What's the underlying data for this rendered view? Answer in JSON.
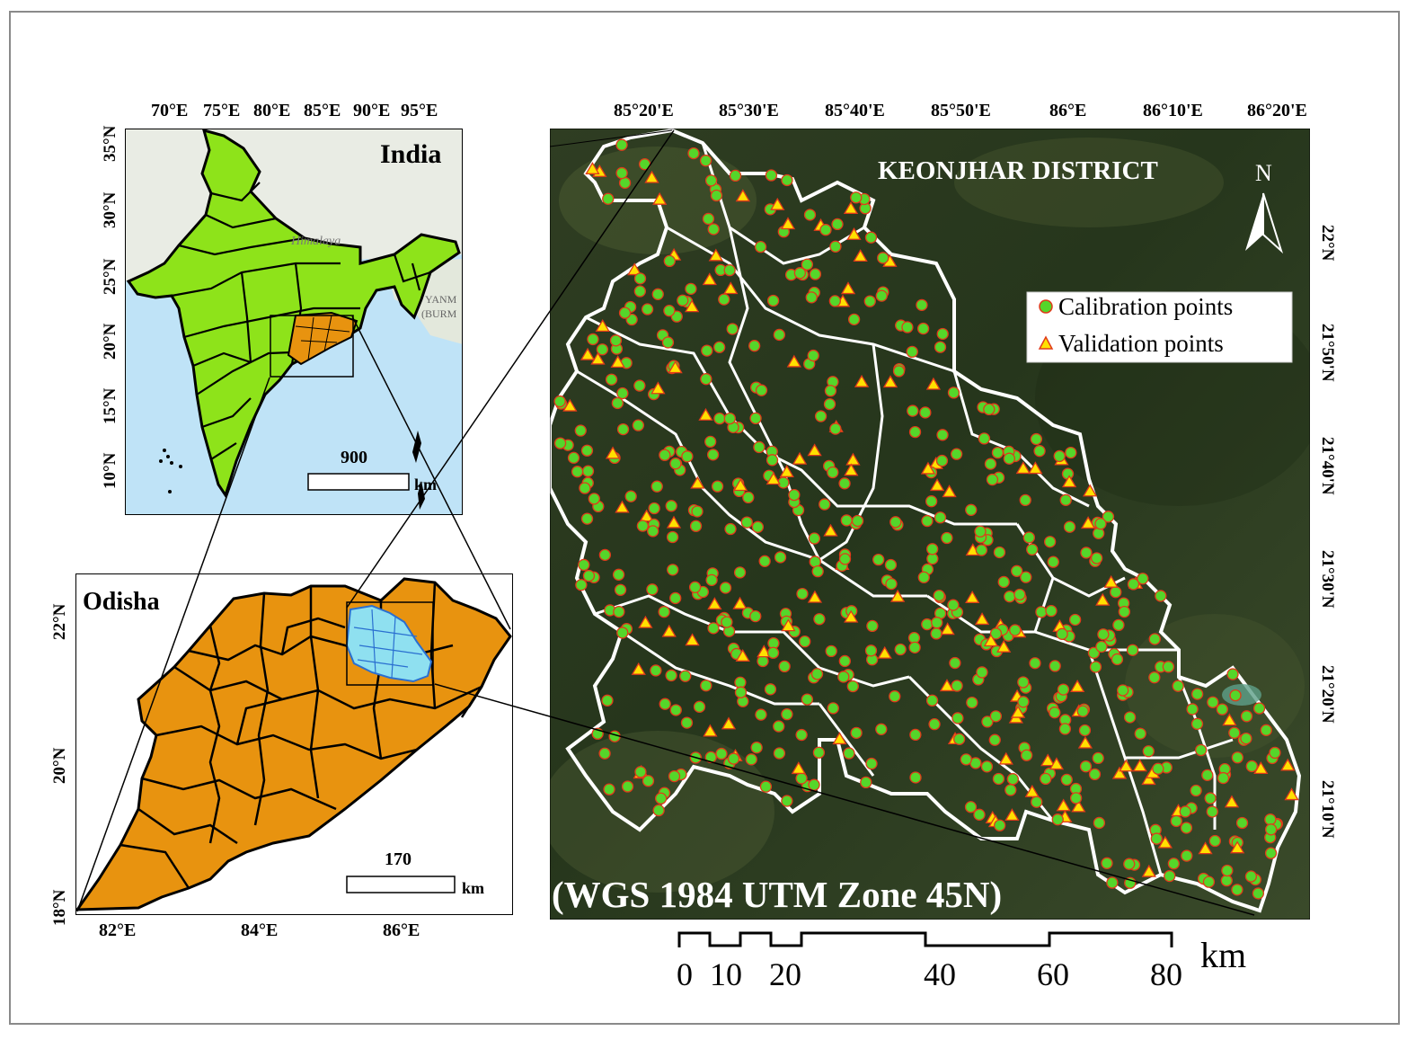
{
  "india_map": {
    "title": "India",
    "place_labels": [
      "Himalaya",
      "YANM",
      "(BURM"
    ],
    "lon_ticks": [
      "70°E",
      "75°E",
      "80°E",
      "85°E",
      "90°E",
      "95°E"
    ],
    "lat_ticks": [
      "35°N",
      "30°N",
      "25°N",
      "20°N",
      "15°N",
      "10°N"
    ],
    "scale": {
      "value": "900",
      "unit": "km"
    },
    "fill_color": "#8ee31a",
    "sea_color": "#bfe3f7"
  },
  "odisha_map": {
    "title": "Odisha",
    "lon_ticks": [
      "82°E",
      "84°E",
      "86°E"
    ],
    "lat_ticks": [
      "22°N",
      "20°N",
      "18°N"
    ],
    "scale": {
      "value": "170",
      "unit": "km"
    },
    "fill_color": "#e8930f",
    "highlight_color": "#8fe0f0"
  },
  "keonjhar_map": {
    "title": "KEONJHAR DISTRICT",
    "north_label": "N",
    "projection_label": "(WGS 1984 UTM Zone 45N)",
    "lon_ticks": [
      "85°20'E",
      "85°30'E",
      "85°40'E",
      "85°50'E",
      "86°E",
      "86°10'E",
      "86°20'E"
    ],
    "lat_ticks": [
      "22°N",
      "21°50'N",
      "21°40'N",
      "21°30'N",
      "21°20'N",
      "21°10'N"
    ],
    "legend": [
      {
        "label": "Calibration points",
        "symbol": "green-circle",
        "color": "#55d62a"
      },
      {
        "label": "Validation points",
        "symbol": "yellow-triangle",
        "color": "#ffe000"
      }
    ],
    "scale": {
      "labels": [
        "0",
        "10",
        "20",
        "40",
        "60",
        "80"
      ],
      "unit": "km"
    }
  }
}
